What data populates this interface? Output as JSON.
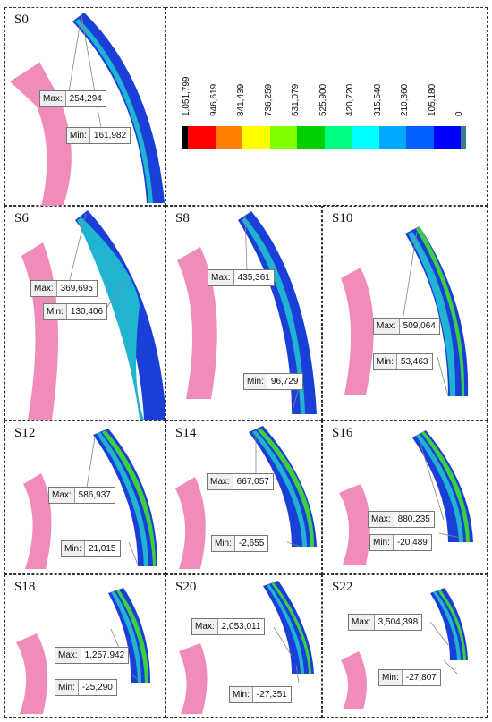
{
  "legend": {
    "ticks": [
      "1,051,799",
      "946,619",
      "841,439",
      "736,259",
      "631,079",
      "525,900",
      "420,720",
      "315,540",
      "210,360",
      "105,180",
      "0"
    ],
    "colors": [
      "#000000",
      "#ff0000",
      "#ff8000",
      "#ffff00",
      "#80ff00",
      "#00d000",
      "#00ff80",
      "#00ffff",
      "#00a8ff",
      "#0060ff",
      "#0000ff",
      "#3a7a8c"
    ]
  },
  "panels": [
    {
      "label": "S0",
      "max_key": "Max:",
      "max": "254,294",
      "min_key": "Min:",
      "min": "161,982"
    },
    {
      "label": "S6",
      "max_key": "Max:",
      "max": "369,695",
      "min_key": "Min:",
      "min": "130,406"
    },
    {
      "label": "S8",
      "max_key": "Max:",
      "max": "435,361",
      "min_key": "Min:",
      "min": "96,729"
    },
    {
      "label": "S10",
      "max_key": "Max:",
      "max": "509,064",
      "min_key": "Min:",
      "min": "53,463"
    },
    {
      "label": "S12",
      "max_key": "Max:",
      "max": "586,937",
      "min_key": "Min:",
      "min": "21,015"
    },
    {
      "label": "S14",
      "max_key": "Max:",
      "max": "667,057",
      "min_key": "Min:",
      "min": "-2,655"
    },
    {
      "label": "S16",
      "max_key": "Max:",
      "max": "880,235",
      "min_key": "Min:",
      "min": "-20,489"
    },
    {
      "label": "S18",
      "max_key": "Max:",
      "max": "1,257,942",
      "min_key": "Min:",
      "min": "-25,290"
    },
    {
      "label": "S20",
      "max_key": "Max:",
      "max": "2,053,011",
      "min_key": "Min:",
      "min": "-27,351"
    },
    {
      "label": "S22",
      "max_key": "Max:",
      "max": "3,504,398",
      "min_key": "Min:",
      "min": "-27,807"
    }
  ],
  "colors": {
    "pink": "#f08cbc",
    "blue": "#1a3fd8",
    "cyan": "#20b4d0",
    "green": "#3cd040",
    "frame": "#333333"
  }
}
